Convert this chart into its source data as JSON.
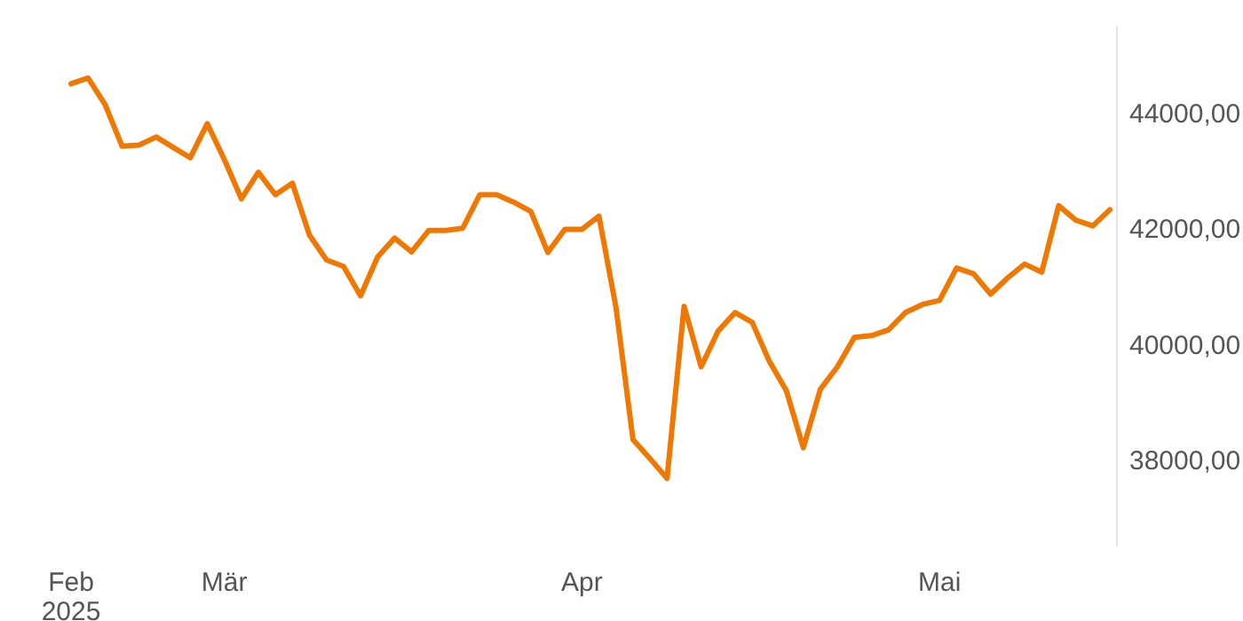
{
  "chart_data": {
    "type": "line",
    "categories": [
      "Feb 2025",
      null,
      null,
      null,
      null,
      null,
      null,
      null,
      null,
      "Mär",
      null,
      null,
      null,
      null,
      null,
      null,
      null,
      null,
      null,
      null,
      null,
      null,
      null,
      null,
      null,
      null,
      null,
      null,
      null,
      null,
      "Apr",
      null,
      null,
      null,
      null,
      null,
      null,
      null,
      null,
      null,
      null,
      null,
      null,
      null,
      null,
      null,
      null,
      null,
      null,
      null,
      null,
      "Mai",
      null,
      null,
      null,
      null,
      null,
      null,
      null,
      null,
      null,
      null
    ],
    "series": [
      {
        "color": "#f07800",
        "values": [
          44510,
          44610,
          44150,
          43430,
          43450,
          43590,
          43410,
          43230,
          43820,
          43200,
          42520,
          42980,
          42590,
          42790,
          41890,
          41460,
          41350,
          40840,
          41510,
          41840,
          41600,
          41970,
          41970,
          42010,
          42590,
          42590,
          42460,
          42300,
          41590,
          41990,
          41990,
          42220,
          40640,
          38350,
          38020,
          37680,
          40660,
          39610,
          40230,
          40550,
          40380,
          39710,
          39200,
          38210,
          39220,
          39610,
          40120,
          40150,
          40250,
          40550,
          40690,
          40760,
          41320,
          41220,
          40870,
          41150,
          41390,
          41250,
          42400,
          42150,
          42050,
          42330
        ]
      }
    ],
    "ylim": [
      36500,
      45500
    ],
    "yticks": [
      {
        "value": 38000,
        "label": "38000,00"
      },
      {
        "value": 40000,
        "label": "40000,00"
      },
      {
        "value": 42000,
        "label": "42000,00"
      },
      {
        "value": 44000,
        "label": "44000,00"
      }
    ],
    "grid": false,
    "line_style": "solid"
  }
}
